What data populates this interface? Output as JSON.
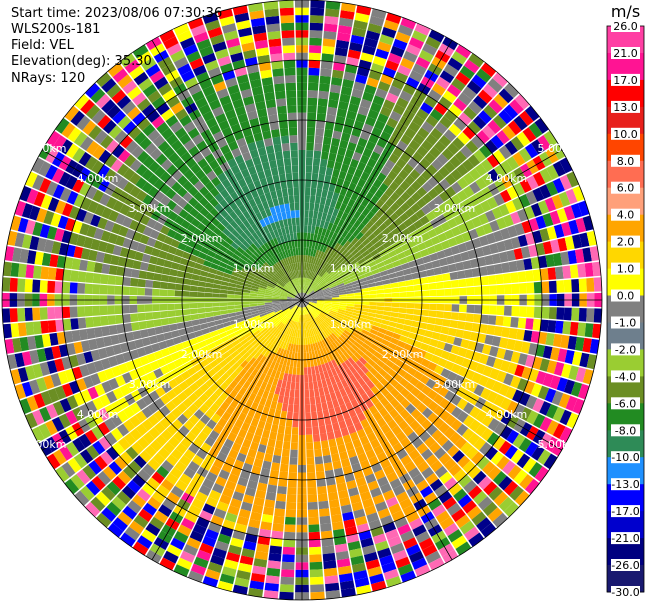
{
  "header": {
    "start_time": "Start time: 2023/08/06 07:30:36",
    "instrument": "WLS200s-181",
    "field": "Field: VEL",
    "elevation": "Elevation(deg): 35.30",
    "nrays": "NRays: 120"
  },
  "chart_data": {
    "type": "heatmap",
    "projection": "polar-ppi",
    "unit": "m/s",
    "range_rings_km": [
      1,
      2,
      3,
      4,
      5
    ],
    "range_ring_labels": [
      "1.00km",
      "2.00km",
      "3.00km",
      "4.00km",
      "5.00km"
    ],
    "max_range_km": 5.0,
    "n_rays": 120,
    "gates_per_ray": 40,
    "colorbar": {
      "tick_labels": [
        "26.0",
        "21.0",
        "17.0",
        "13.0",
        "10.0",
        "8.0",
        "6.0",
        "4.0",
        "2.0",
        "1.0",
        "0.0",
        "-1.0",
        "-2.0",
        "-4.0",
        "-6.0",
        "-8.0",
        "-10.0",
        "-13.0",
        "-17.0",
        "-21.0",
        "-26.0",
        "-30.0"
      ],
      "colors": [
        "#ff3fa3",
        "#ff1493",
        "#ff0000",
        "#e8201c",
        "#ff4500",
        "#ff6d52",
        "#ffa07a",
        "#ffa500",
        "#ffd700",
        "#ffff00",
        "#808080",
        "#6e7f8d",
        "#9acd32",
        "#6b8e23",
        "#228b22",
        "#2e8b57",
        "#1e90ff",
        "#0000ff",
        "#0000cd",
        "#000080",
        "#191970"
      ]
    },
    "regions": {
      "positive_color_near": "#ff6347",
      "negative_color_near": "#1e90ff",
      "noise_colors": [
        "#ff1493",
        "#0000ff",
        "#ffff00",
        "#000080",
        "#228b22",
        "#ff0000",
        "#9acd32",
        "#808080",
        "#ffa500",
        "#00008b",
        "#ff69b4",
        "#6b8e23"
      ]
    }
  }
}
